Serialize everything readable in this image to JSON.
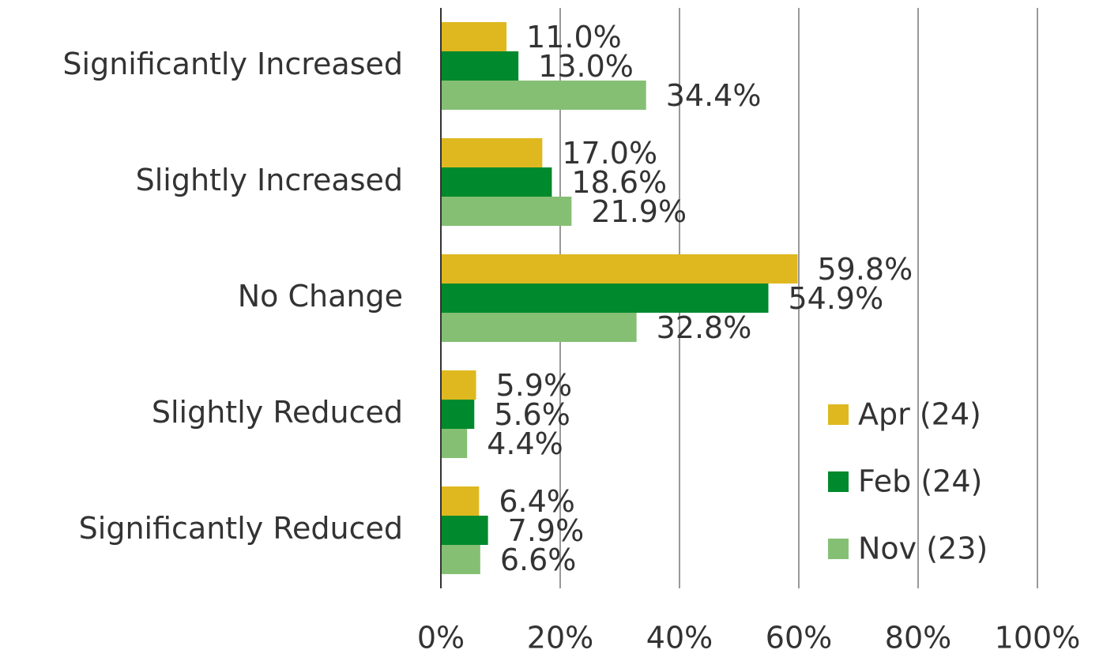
{
  "chart_data": {
    "type": "hbar",
    "categories": [
      "Significantly Increased",
      "Slightly Increased",
      "No Change",
      "Slightly Reduced",
      "Significantly Reduced"
    ],
    "series": [
      {
        "name": "Apr (24)",
        "color": "#dfb820",
        "values": [
          11.0,
          17.0,
          59.8,
          5.9,
          6.4
        ],
        "value_labels": [
          "11.0%",
          "17.0%",
          "59.8%",
          "5.9%",
          "6.4%"
        ]
      },
      {
        "name": "Feb (24)",
        "color": "#00892d",
        "values": [
          13.0,
          18.6,
          54.9,
          5.6,
          7.9
        ],
        "value_labels": [
          "13.0%",
          "18.6%",
          "54.9%",
          "5.6%",
          "7.9%"
        ]
      },
      {
        "name": "Nov (23)",
        "color": "#85bf74",
        "values": [
          34.4,
          21.9,
          32.8,
          4.4,
          6.6
        ],
        "value_labels": [
          "34.4%",
          "21.9%",
          "32.8%",
          "4.4%",
          "6.6%"
        ]
      }
    ],
    "xlim": [
      0,
      100
    ],
    "xticks": [
      {
        "value": 0,
        "label": "0%"
      },
      {
        "value": 20,
        "label": "20%"
      },
      {
        "value": 40,
        "label": "40%"
      },
      {
        "value": 60,
        "label": "60%"
      },
      {
        "value": 80,
        "label": "80%"
      },
      {
        "value": 100,
        "label": "100%"
      }
    ],
    "grid": true,
    "legend": "lower right"
  }
}
